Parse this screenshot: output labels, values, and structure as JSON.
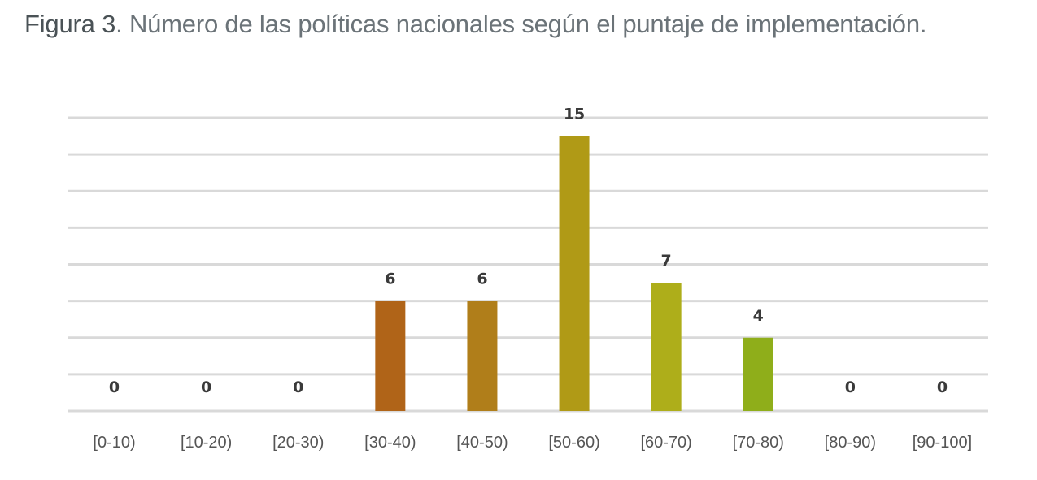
{
  "chart_data": {
    "type": "bar",
    "title_lead": "Figura 3",
    "title": ". Número de las políticas nacionales según el puntaje de implementación.",
    "categories": [
      "[0-10)",
      "[10-20)",
      "[20-30)",
      "[30-40)",
      "[40-50)",
      "[50-60)",
      "[60-70)",
      "[70-80)",
      "[80-90)",
      "[90-100]"
    ],
    "values": [
      0,
      0,
      0,
      6,
      6,
      15,
      7,
      4,
      0,
      0
    ],
    "colors": [
      "#b0661a",
      "#b0661a",
      "#b0661a",
      "#b06418",
      "#b07e1a",
      "#b09a16",
      "#aeae1a",
      "#8fae1a",
      "#8fae1a",
      "#8fae1a"
    ],
    "xlabel": "",
    "ylabel": "",
    "ylim": [
      0,
      16
    ],
    "ytick_step": 2,
    "grid": true,
    "legend": "none"
  }
}
